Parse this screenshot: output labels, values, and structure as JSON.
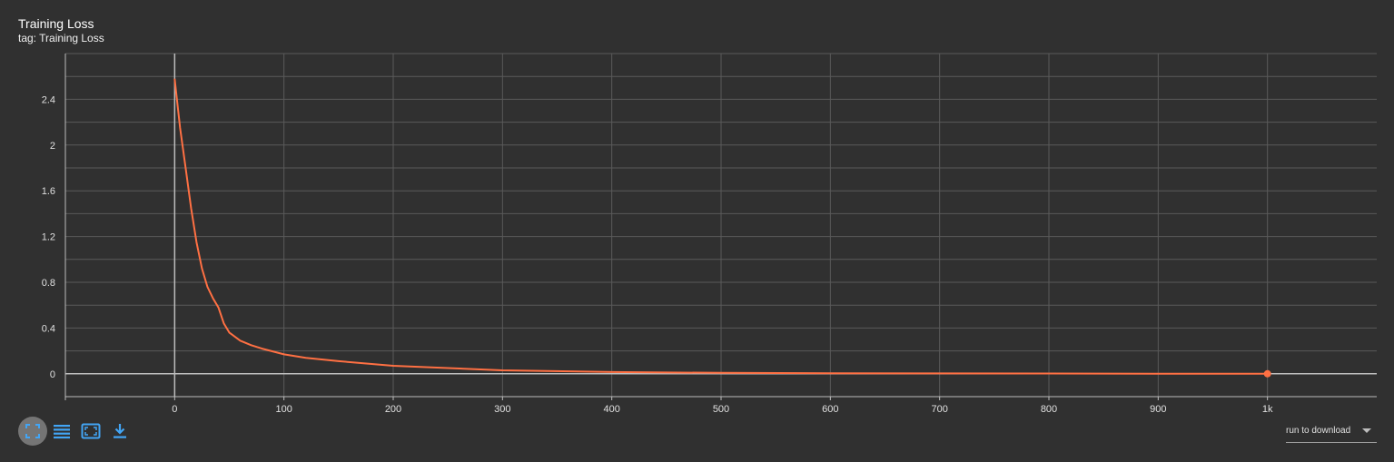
{
  "card": {
    "title": "Training Loss",
    "subtitle": "tag: Training Loss"
  },
  "toolbar": {
    "buttons": [
      {
        "icon": "fullscreen-icon",
        "active": true
      },
      {
        "icon": "list-icon",
        "active": false
      },
      {
        "icon": "fit-domain-icon",
        "active": false
      },
      {
        "icon": "download-icon",
        "active": false
      }
    ],
    "accent": "#42a5f5"
  },
  "run_select": {
    "label": "run to download"
  },
  "colors": {
    "background": "#303030",
    "grid": "#5a5a5a",
    "axis": "#bdbdbd",
    "line": "#ff7043"
  },
  "chart_data": {
    "type": "line",
    "title": "Training Loss",
    "xlabel": "",
    "ylabel": "",
    "xlim": [
      -100,
      1100
    ],
    "ylim": [
      -0.2,
      2.8
    ],
    "grid": true,
    "x_ticks": [
      0,
      100,
      200,
      300,
      400,
      500,
      600,
      700,
      800,
      900,
      1000
    ],
    "x_tick_labels": [
      "0",
      "100",
      "200",
      "300",
      "400",
      "500",
      "600",
      "700",
      "800",
      "900",
      "1k"
    ],
    "y_ticks": [
      0,
      0.4,
      0.8,
      1.2,
      1.6,
      2,
      2.4
    ],
    "y_tick_labels": [
      "0",
      "0.4",
      "0.8",
      "1.2",
      "1.6",
      "2",
      "2.4"
    ],
    "series": [
      {
        "color": "#ff7043",
        "x": [
          0,
          5,
          10,
          15,
          20,
          25,
          30,
          35,
          40,
          45,
          50,
          60,
          70,
          80,
          100,
          120,
          150,
          200,
          250,
          300,
          400,
          500,
          600,
          700,
          800,
          900,
          1000
        ],
        "y": [
          2.58,
          2.15,
          1.8,
          1.45,
          1.15,
          0.92,
          0.76,
          0.66,
          0.58,
          0.44,
          0.36,
          0.29,
          0.25,
          0.22,
          0.17,
          0.14,
          0.11,
          0.07,
          0.05,
          0.03,
          0.015,
          0.008,
          0.005,
          0.003,
          0.002,
          0.001,
          0.0
        ]
      }
    ],
    "markers": [
      {
        "x": 1000,
        "y": 0.0
      }
    ]
  }
}
